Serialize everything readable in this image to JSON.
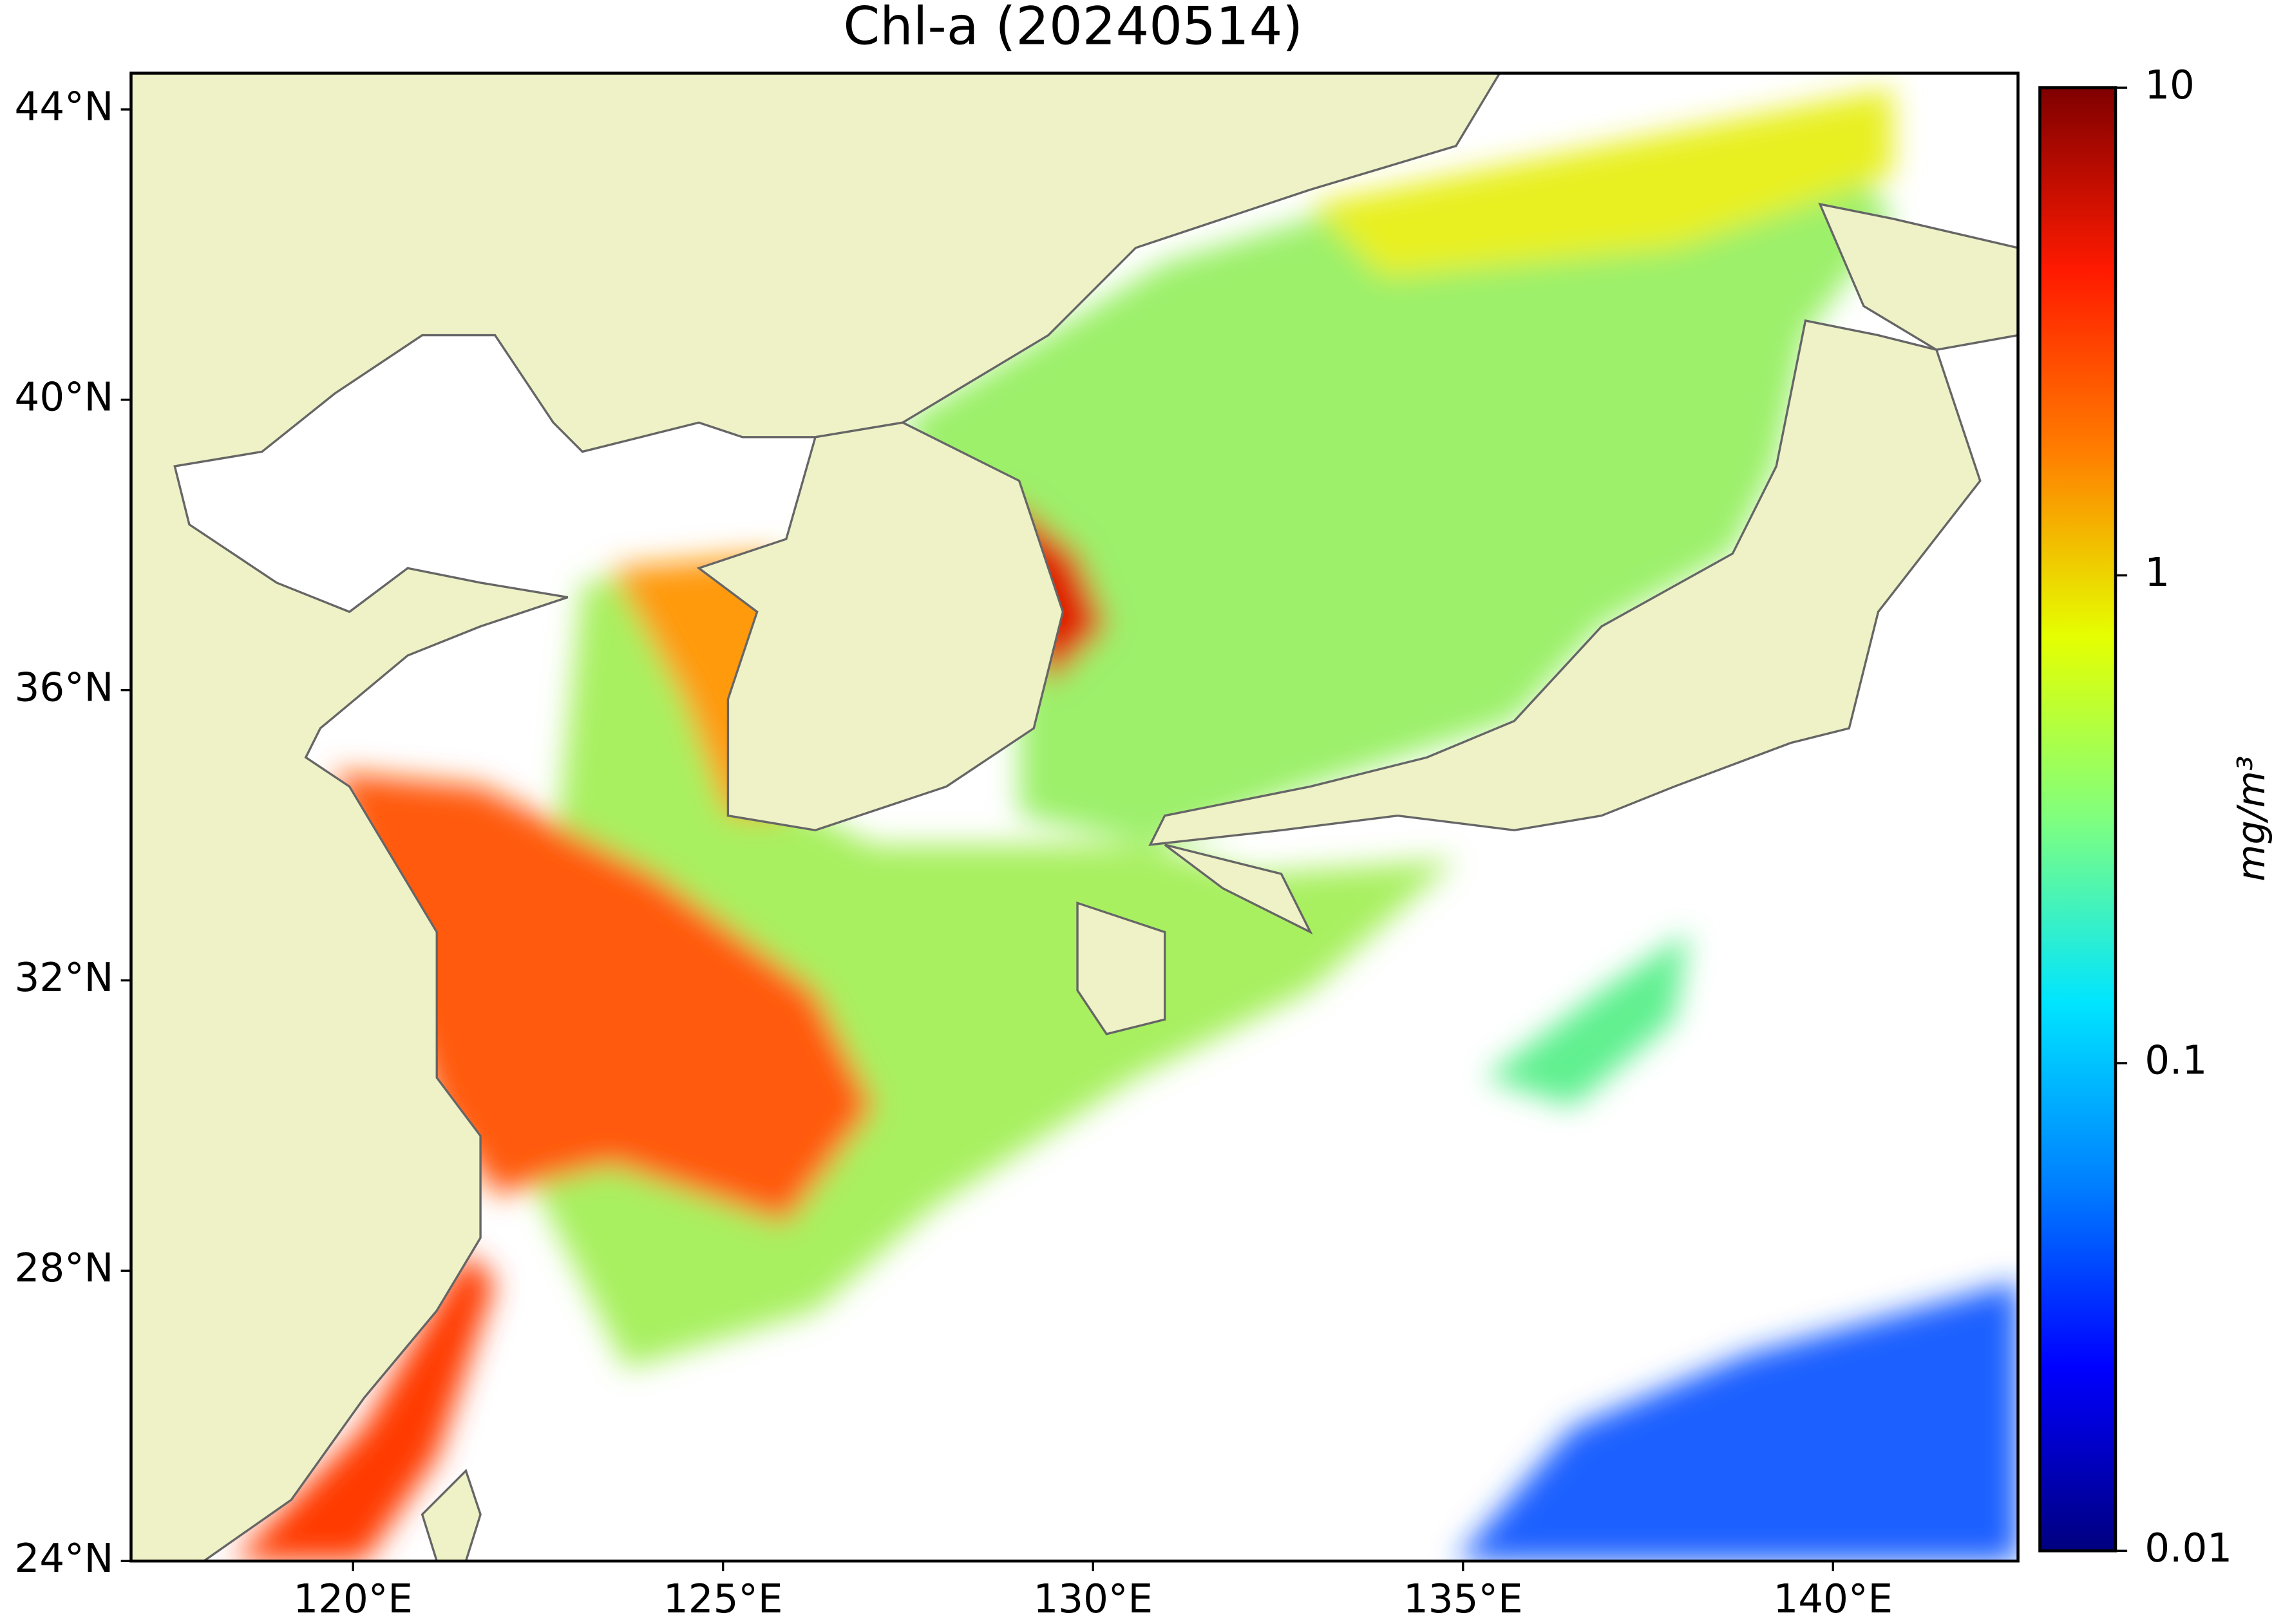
{
  "chart_data": {
    "type": "map",
    "title": "Chl-a (20240514)",
    "xlim": [
      117,
      142.5
    ],
    "ylim": [
      24,
      44.5
    ],
    "xticks": [
      {
        "value": 120,
        "label": "120°E"
      },
      {
        "value": 125,
        "label": "125°E"
      },
      {
        "value": 130,
        "label": "130°E"
      },
      {
        "value": 135,
        "label": "135°E"
      },
      {
        "value": 140,
        "label": "140°E"
      }
    ],
    "yticks": [
      {
        "value": 24,
        "label": "24°N"
      },
      {
        "value": 28,
        "label": "28°N"
      },
      {
        "value": 32,
        "label": "32°N"
      },
      {
        "value": 36,
        "label": "36°N"
      },
      {
        "value": 40,
        "label": "40°N"
      },
      {
        "value": 44,
        "label": "44°N"
      }
    ],
    "colorbar": {
      "label": "mg/m³",
      "log_scale": true,
      "lim": [
        0.01,
        10
      ],
      "ticks": [
        0.01,
        0.1,
        1,
        10
      ],
      "colormap": [
        "#00007f",
        "#0000ff",
        "#007fff",
        "#00e5ff",
        "#7fff7f",
        "#e5ff00",
        "#ff7f00",
        "#ff1a00",
        "#7f0000"
      ]
    }
  }
}
